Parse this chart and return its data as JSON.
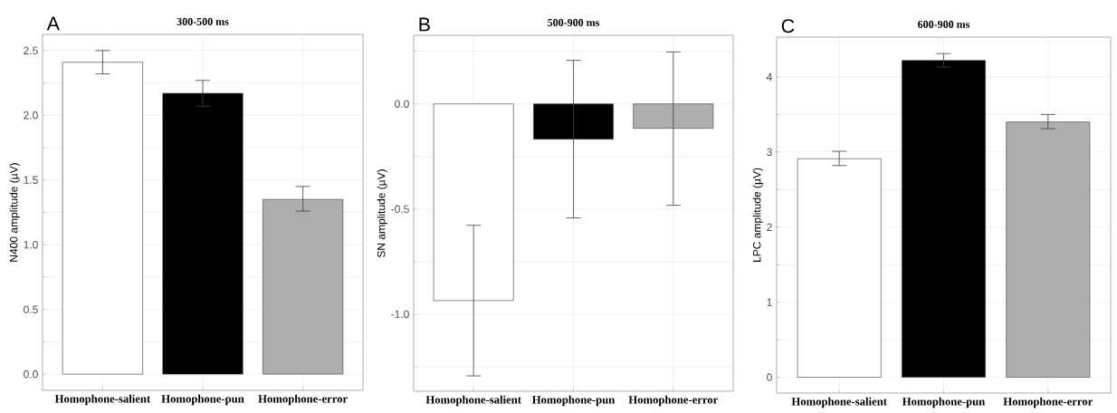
{
  "chart_data": [
    {
      "type": "bar",
      "title": "300-500 ms",
      "ylabel": "N400 amplitude (µV)",
      "annotations": [
        "A"
      ],
      "categories": [
        "Homophone-salient",
        "Homophone-pun",
        "Homophone-error"
      ],
      "values": [
        2.41,
        2.17,
        1.35
      ],
      "colors": [
        "#ffffff",
        "#000000",
        "#aeaeae"
      ],
      "errors": [
        [
          2.32,
          2.5
        ],
        [
          2.07,
          2.27
        ],
        [
          1.26,
          1.45
        ]
      ],
      "ylim": [
        -0.125,
        2.625
      ],
      "yticks": [
        {
          "value": 0,
          "label": "0.0"
        },
        {
          "value": 0.25,
          "label": null
        },
        {
          "value": 0.5,
          "label": "0.5"
        },
        {
          "value": 0.75,
          "label": null
        },
        {
          "value": 1,
          "label": "1.0"
        },
        {
          "value": 1.25,
          "label": null
        },
        {
          "value": 1.5,
          "label": "1.5"
        },
        {
          "value": 1.75,
          "label": null
        },
        {
          "value": 2,
          "label": "2.0"
        },
        {
          "value": 2.25,
          "label": null
        },
        {
          "value": 2.5,
          "label": "2.5"
        }
      ],
      "grid": true
    },
    {
      "type": "bar",
      "title": "500-900 ms",
      "ylabel": "SN amplitude (µV)",
      "annotations": [
        "B"
      ],
      "categories": [
        "Homophone-salient",
        "Homophone-pun",
        "Homophone-error"
      ],
      "values": [
        -0.935,
        -0.168,
        -0.116
      ],
      "colors": [
        "#ffffff",
        "#000000",
        "#aeaeae"
      ],
      "errors": [
        [
          -1.293,
          -0.577
        ],
        [
          -0.542,
          0.207
        ],
        [
          -0.482,
          0.247
        ]
      ],
      "ylim": [
        -1.366,
        0.326
      ],
      "yticks": [
        {
          "value": -1.25,
          "label": null
        },
        {
          "value": -1,
          "label": "-1.0"
        },
        {
          "value": -0.75,
          "label": null
        },
        {
          "value": -0.5,
          "label": "-0.5"
        },
        {
          "value": -0.25,
          "label": null
        },
        {
          "value": 0,
          "label": "0.0"
        },
        {
          "value": 0.25,
          "label": null
        }
      ],
      "grid": true
    },
    {
      "type": "bar",
      "title": "600-900 ms",
      "ylabel": "LPC amplitude (µV)",
      "annotations": [
        "C"
      ],
      "categories": [
        "Homophone-salient",
        "Homophone-pun",
        "Homophone-error"
      ],
      "values": [
        2.91,
        4.22,
        3.4
      ],
      "colors": [
        "#ffffff",
        "#000000",
        "#aeaeae"
      ],
      "errors": [
        [
          2.82,
          3.01
        ],
        [
          4.13,
          4.31
        ],
        [
          3.31,
          3.5
        ]
      ],
      "ylim": [
        -0.21,
        4.53
      ],
      "yticks": [
        0,
        {
          "value": 0.5,
          "label": null
        },
        1,
        {
          "value": 1.5,
          "label": null
        },
        2,
        {
          "value": 2.5,
          "label": null
        },
        3,
        {
          "value": 3.5,
          "label": null
        },
        4
      ],
      "grid": true
    }
  ]
}
